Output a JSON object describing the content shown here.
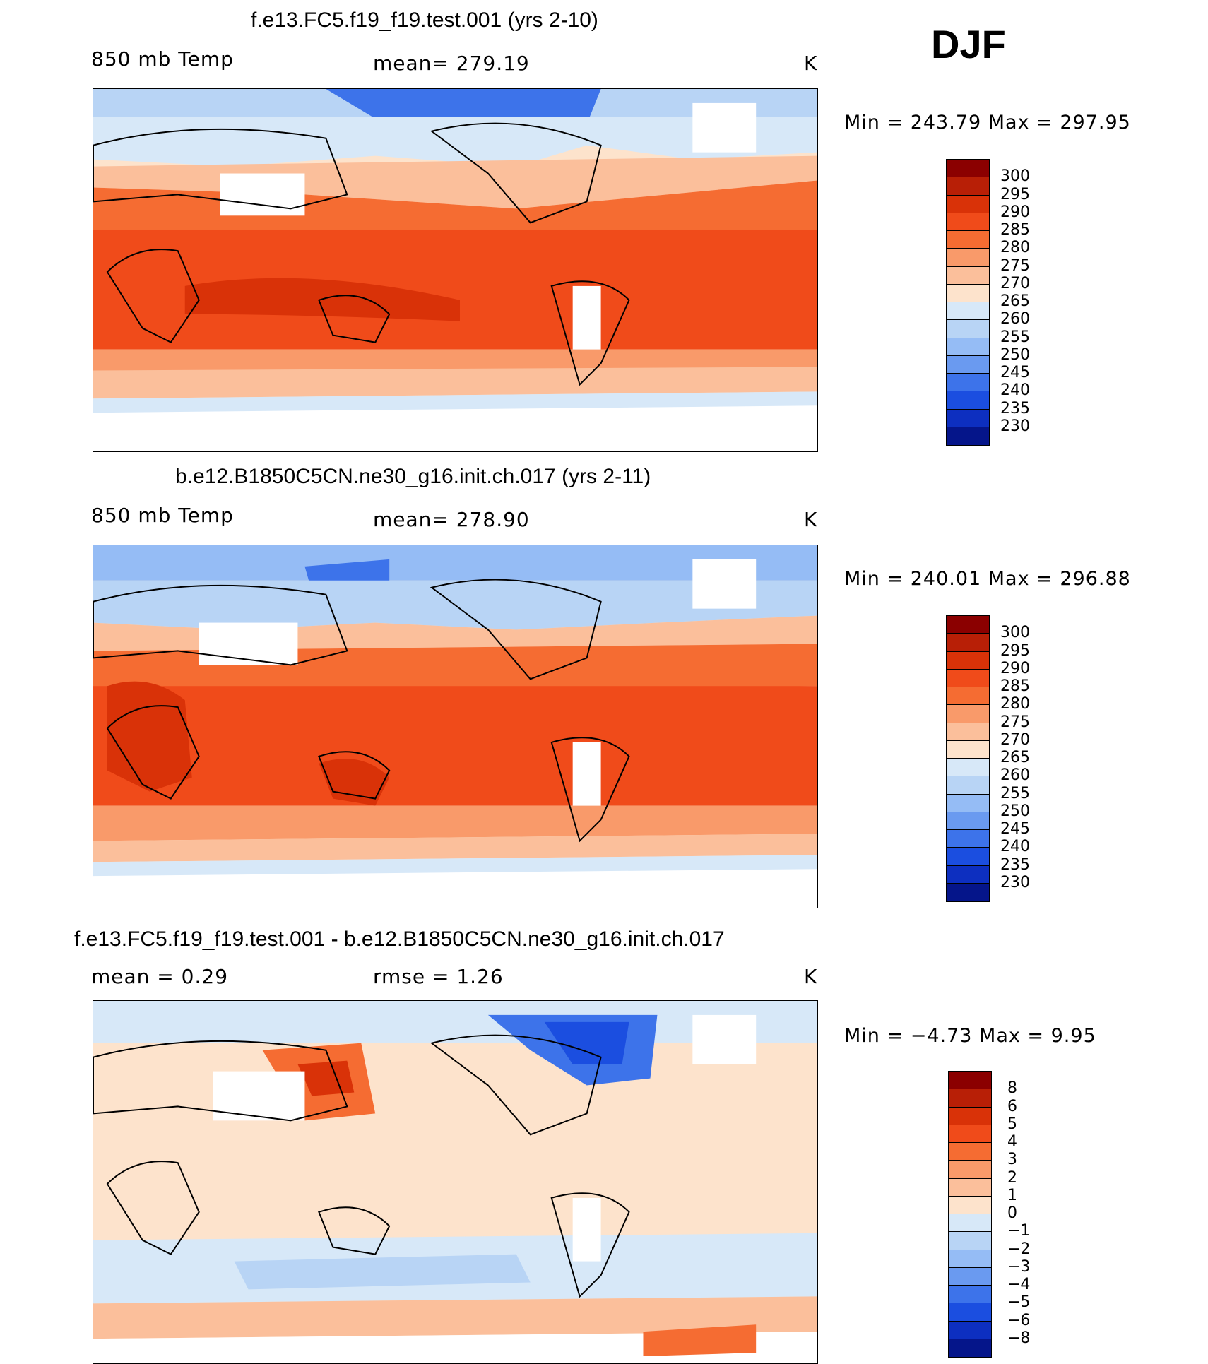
{
  "season": "DJF",
  "units": "K",
  "panels": [
    {
      "title": "f.e13.FC5.f19_f19.test.001 (yrs 2-10)",
      "left_label": "850 mb Temp",
      "center_label": "mean=  279.19",
      "right_label": "K",
      "minmax": "Min  =  243.79  Max  =  297.95",
      "colorbar_labels": [
        "300",
        "295",
        "290",
        "285",
        "280",
        "275",
        "270",
        "265",
        "260",
        "255",
        "250",
        "245",
        "240",
        "235",
        "230"
      ]
    },
    {
      "title": "b.e12.B1850C5CN.ne30_g16.init.ch.017 (yrs 2-11)",
      "left_label": "850 mb Temp",
      "center_label": "mean=  278.90",
      "right_label": "K",
      "minmax": "Min  =  240.01  Max  =  296.88",
      "colorbar_labels": [
        "300",
        "295",
        "290",
        "285",
        "280",
        "275",
        "270",
        "265",
        "260",
        "255",
        "250",
        "245",
        "240",
        "235",
        "230"
      ]
    },
    {
      "title": "f.e13.FC5.f19_f19.test.001 - b.e12.B1850C5CN.ne30_g16.init.ch.017",
      "left_label": "mean  =      0.29",
      "center_label": "rmse  =      1.26",
      "right_label": "K",
      "minmax": "Min  =    −4.73  Max  =      9.95",
      "colorbar_labels": [
        "8",
        "6",
        "5",
        "4",
        "3",
        "2",
        "1",
        "0",
        "−1",
        "−2",
        "−3",
        "−4",
        "−5",
        "−6",
        "−8"
      ]
    }
  ],
  "colors": {
    "abs_scale": [
      "#8b0000",
      "#b81f06",
      "#d93208",
      "#f04b1a",
      "#f56c32",
      "#f99a6a",
      "#fbbf9b",
      "#fde3cc",
      "#d7e8f8",
      "#b8d4f5",
      "#95bcf5",
      "#6a9af0",
      "#3d73ea",
      "#1b4ee0",
      "#0d2fc0",
      "#05158a"
    ],
    "diff_scale": [
      "#8b0000",
      "#b81f06",
      "#d93208",
      "#f04b1a",
      "#f56c32",
      "#f99a6a",
      "#fbbf9b",
      "#fde3cc",
      "#d7e8f8",
      "#b8d4f5",
      "#95bcf5",
      "#6a9af0",
      "#3d73ea",
      "#1b4ee0",
      "#0d2fc0",
      "#05158a"
    ]
  }
}
